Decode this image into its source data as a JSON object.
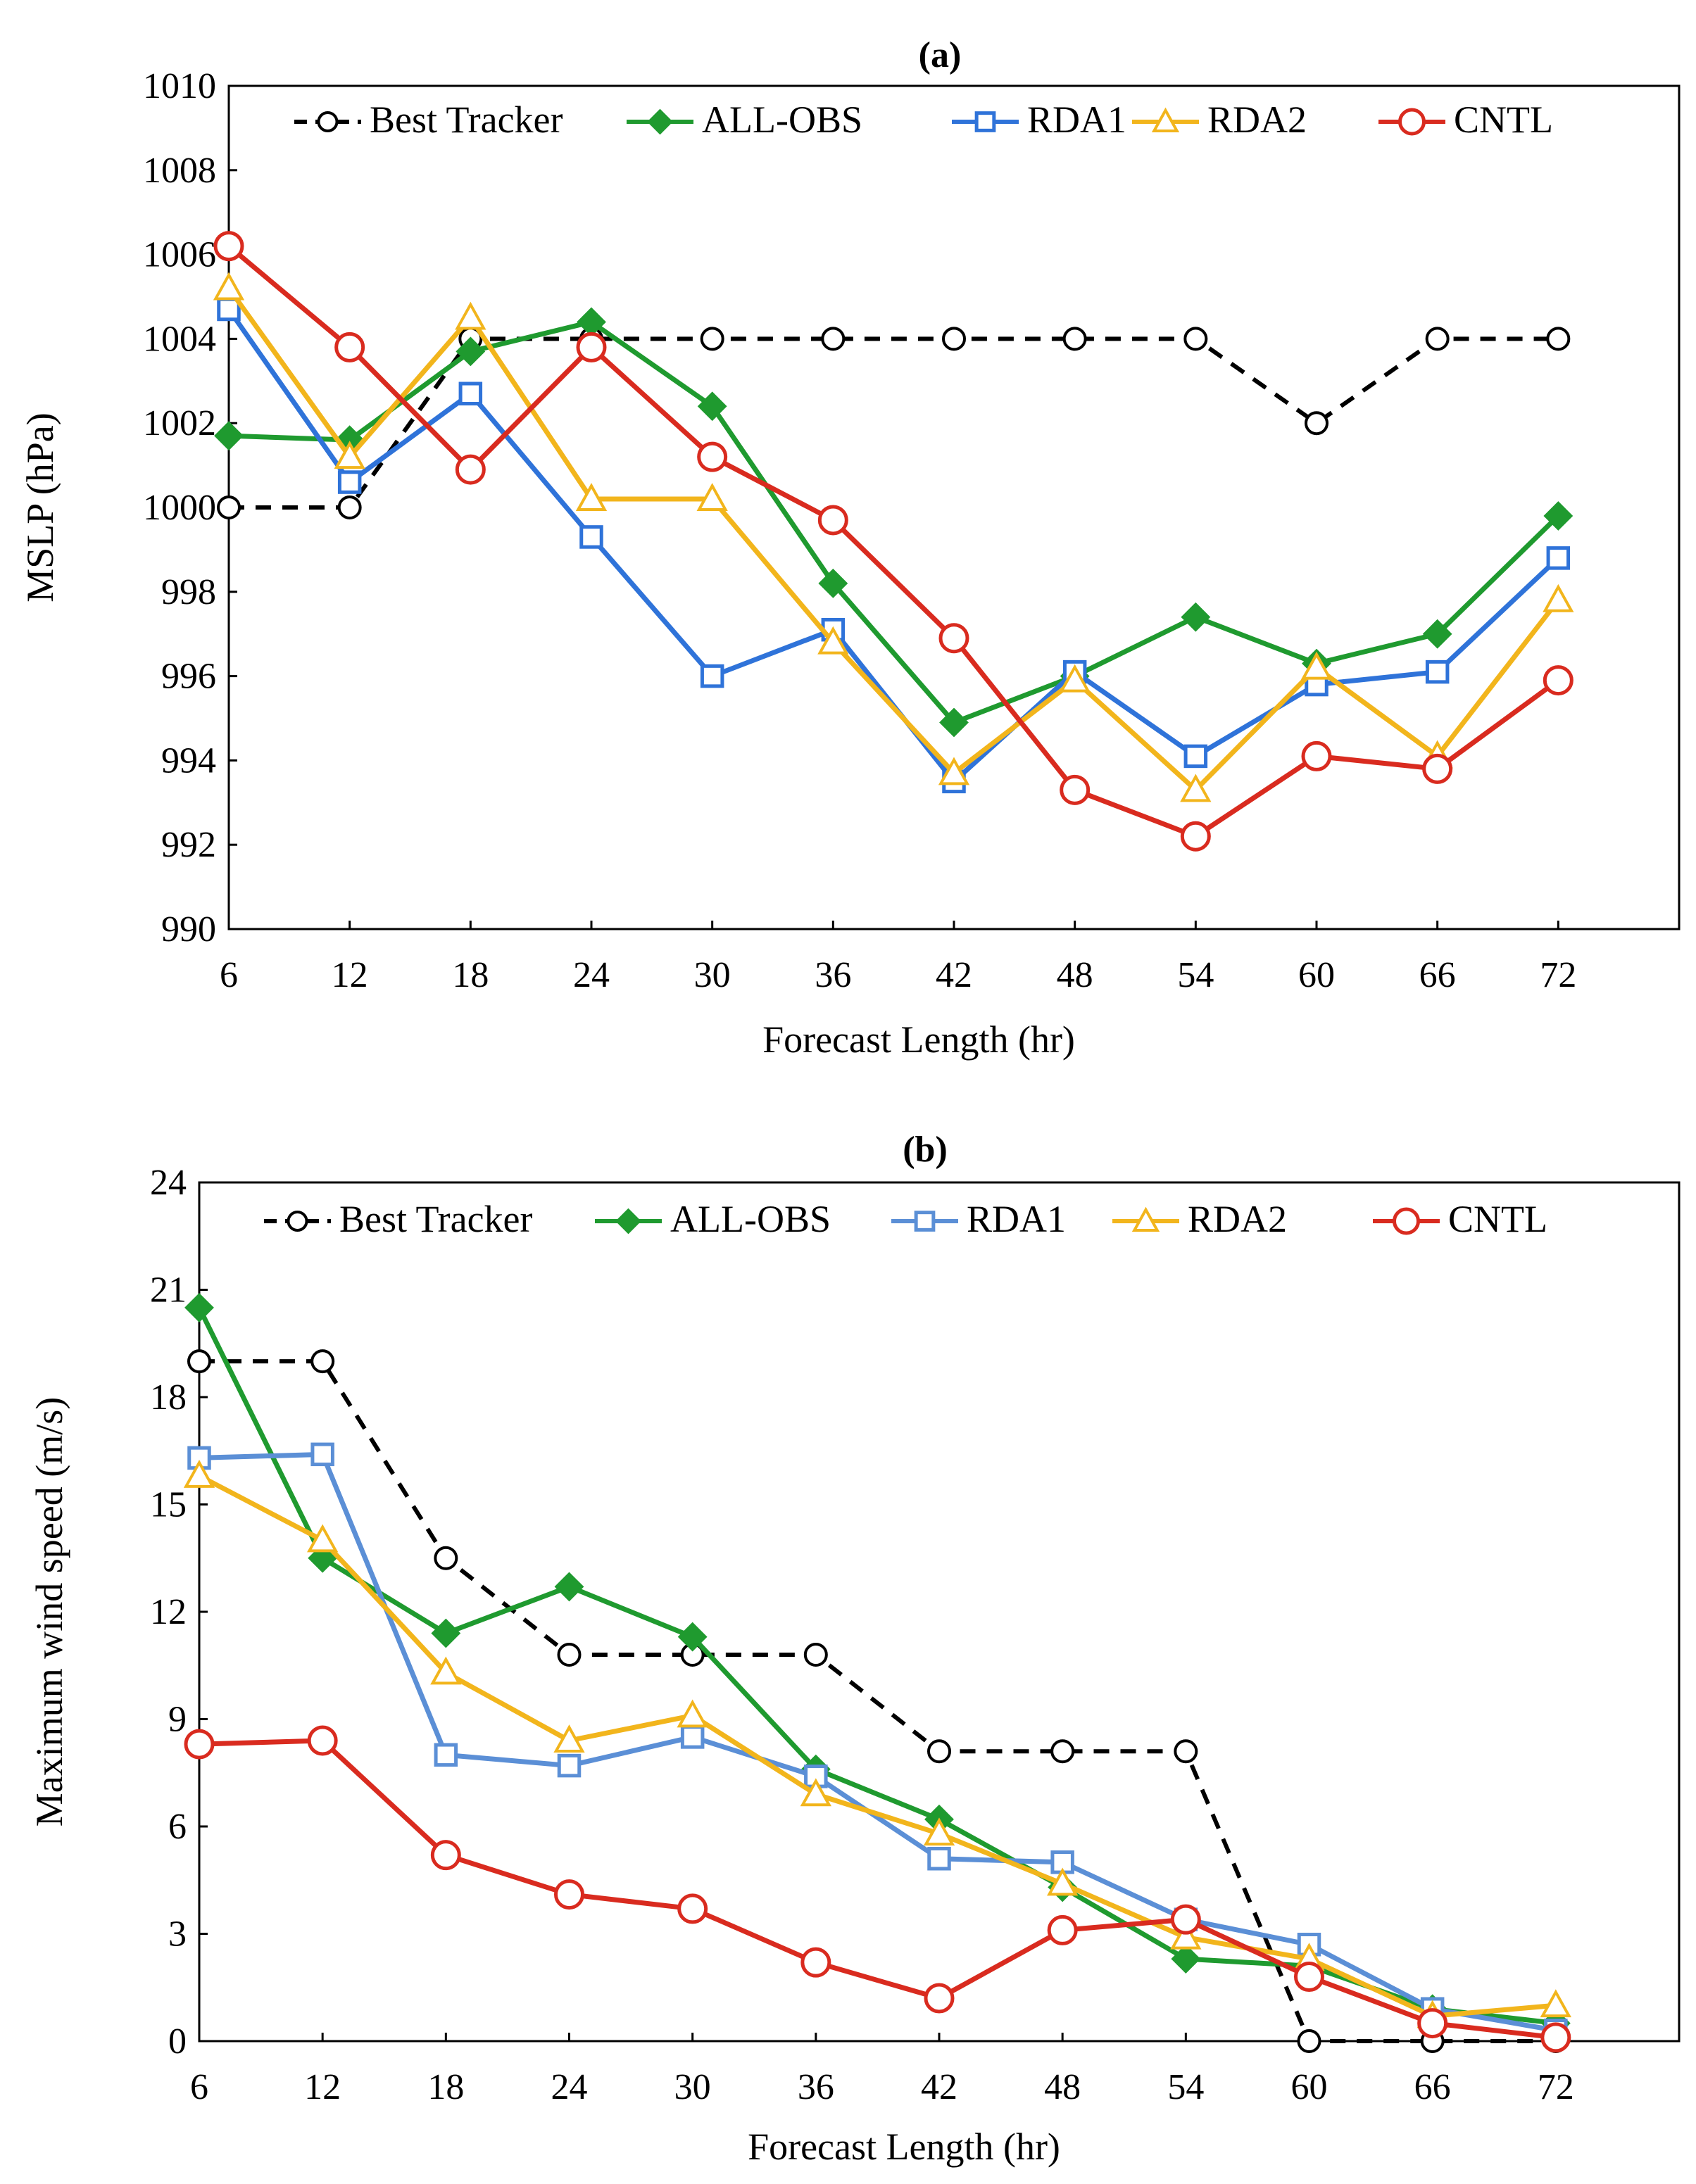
{
  "chart_data": [
    {
      "type": "line",
      "panel": "(a)",
      "title": "(a)",
      "xlabel": "Forecast Length (hr)",
      "ylabel": "MSLP (hPa)",
      "x": [
        6,
        12,
        18,
        24,
        30,
        36,
        42,
        48,
        54,
        60,
        66,
        72
      ],
      "x_tick_labels": [
        "6",
        "12",
        "18",
        "24",
        "30",
        "36",
        "42",
        "48",
        "54",
        "60",
        "66",
        "72"
      ],
      "ylim": [
        990,
        1010
      ],
      "y_ticks": [
        990,
        992,
        994,
        996,
        998,
        1000,
        1002,
        1004,
        1006,
        1008,
        1010
      ],
      "y_tick_labels": [
        "990",
        "992",
        "994",
        "996",
        "998",
        "1000",
        "1002",
        "1004",
        "1006",
        "1008",
        "1010"
      ],
      "legend_position": "top",
      "series": [
        {
          "name": "Best Tracker",
          "color": "#000000",
          "dash": true,
          "marker": "circle-open",
          "values": [
            1000,
            1000,
            1004,
            1004,
            1004,
            1004,
            1004,
            1004,
            1004,
            1002,
            1004,
            1004
          ]
        },
        {
          "name": "ALL-OBS",
          "color": "#1f9a2f",
          "dash": false,
          "marker": "diamond-filled",
          "values": [
            1001.7,
            1001.6,
            1003.7,
            1004.4,
            1002.4,
            998.2,
            994.9,
            996.0,
            997.4,
            996.3,
            997.0,
            999.8
          ]
        },
        {
          "name": "RDA1",
          "color": "#2f73d9",
          "dash": false,
          "marker": "square-open",
          "values": [
            1004.7,
            1000.6,
            1002.7,
            999.3,
            996.0,
            997.1,
            993.5,
            996.1,
            994.1,
            995.8,
            996.1,
            998.8
          ]
        },
        {
          "name": "RDA2",
          "color": "#f2b51c",
          "dash": false,
          "marker": "triangle-open",
          "values": [
            1005.2,
            1001.2,
            1004.5,
            1000.2,
            1000.2,
            996.8,
            993.7,
            995.9,
            993.3,
            996.2,
            994.1,
            997.8
          ]
        },
        {
          "name": "CNTL",
          "color": "#d92b1f",
          "dash": false,
          "marker": "circle-open",
          "values": [
            1006.2,
            1003.8,
            1000.9,
            1003.8,
            1001.2,
            999.7,
            996.9,
            993.3,
            992.2,
            994.1,
            993.8,
            995.9
          ]
        }
      ]
    },
    {
      "type": "line",
      "panel": "(b)",
      "title": "(b)",
      "xlabel": "Forecast Length (hr)",
      "ylabel": "Maximum wind speed (m/s)",
      "x": [
        6,
        12,
        18,
        24,
        30,
        36,
        42,
        48,
        54,
        60,
        66,
        72
      ],
      "x_tick_labels": [
        "6",
        "12",
        "18",
        "24",
        "30",
        "36",
        "42",
        "48",
        "54",
        "60",
        "66",
        "72"
      ],
      "ylim": [
        0,
        24
      ],
      "y_ticks": [
        0,
        3,
        6,
        9,
        12,
        15,
        18,
        21,
        24
      ],
      "y_tick_labels": [
        "0",
        "3",
        "6",
        "9",
        "12",
        "15",
        "18",
        "21",
        "24"
      ],
      "legend_position": "top",
      "series": [
        {
          "name": "Best Tracker",
          "color": "#000000",
          "dash": true,
          "marker": "circle-open",
          "values": [
            19.0,
            19.0,
            13.5,
            10.8,
            10.8,
            10.8,
            8.1,
            8.1,
            8.1,
            0.0,
            0.0,
            0.0
          ]
        },
        {
          "name": "ALL-OBS",
          "color": "#1f9a2f",
          "dash": false,
          "marker": "diamond-filled",
          "values": [
            20.5,
            13.5,
            11.4,
            12.7,
            11.3,
            7.6,
            6.2,
            4.3,
            2.3,
            2.1,
            0.9,
            0.5
          ]
        },
        {
          "name": "RDA1",
          "color": "#5b8fd6",
          "dash": false,
          "marker": "square-open",
          "values": [
            16.3,
            16.4,
            8.0,
            7.7,
            8.5,
            7.4,
            5.1,
            5.0,
            3.4,
            2.7,
            0.9,
            0.3
          ]
        },
        {
          "name": "RDA2",
          "color": "#f2b51c",
          "dash": false,
          "marker": "triangle-open",
          "values": [
            15.8,
            14.0,
            10.3,
            8.4,
            9.1,
            6.9,
            5.8,
            4.4,
            2.9,
            2.3,
            0.7,
            1.0
          ]
        },
        {
          "name": "CNTL",
          "color": "#d92b1f",
          "dash": false,
          "marker": "circle-open",
          "values": [
            8.3,
            8.4,
            5.2,
            4.1,
            3.7,
            2.2,
            1.2,
            3.1,
            3.4,
            1.8,
            0.5,
            0.1
          ]
        }
      ]
    }
  ]
}
